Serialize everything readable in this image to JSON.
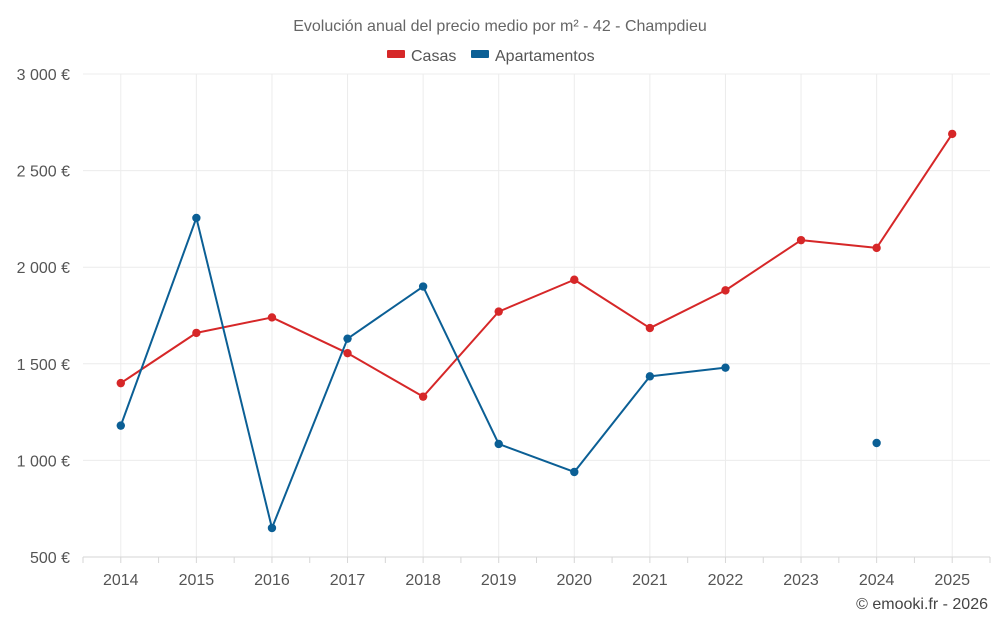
{
  "chart_data": {
    "type": "line",
    "title": "Evolución anual del precio medio por m² - 42 - Champdieu",
    "categories": [
      "2014",
      "2015",
      "2016",
      "2017",
      "2018",
      "2019",
      "2020",
      "2021",
      "2022",
      "2023",
      "2024",
      "2025"
    ],
    "y_ticks": [
      "500 €",
      "1 000 €",
      "1 500 €",
      "2 000 €",
      "2 500 €",
      "3 000 €"
    ],
    "y_tick_values": [
      500,
      1000,
      1500,
      2000,
      2500,
      3000
    ],
    "ylim": [
      500,
      3000
    ],
    "grid": true,
    "legend_position": "top-center",
    "series": [
      {
        "name": "Casas",
        "color": "#d62728",
        "values": [
          1400,
          1660,
          1740,
          1555,
          1330,
          1770,
          1935,
          1685,
          1880,
          2140,
          2100,
          2690
        ]
      },
      {
        "name": "Apartamentos",
        "color": "#0b5f95",
        "values": [
          1180,
          2255,
          650,
          1630,
          1900,
          1085,
          940,
          1435,
          1480,
          null,
          1090,
          null
        ]
      }
    ]
  },
  "credit": "© emooki.fr - 2026"
}
